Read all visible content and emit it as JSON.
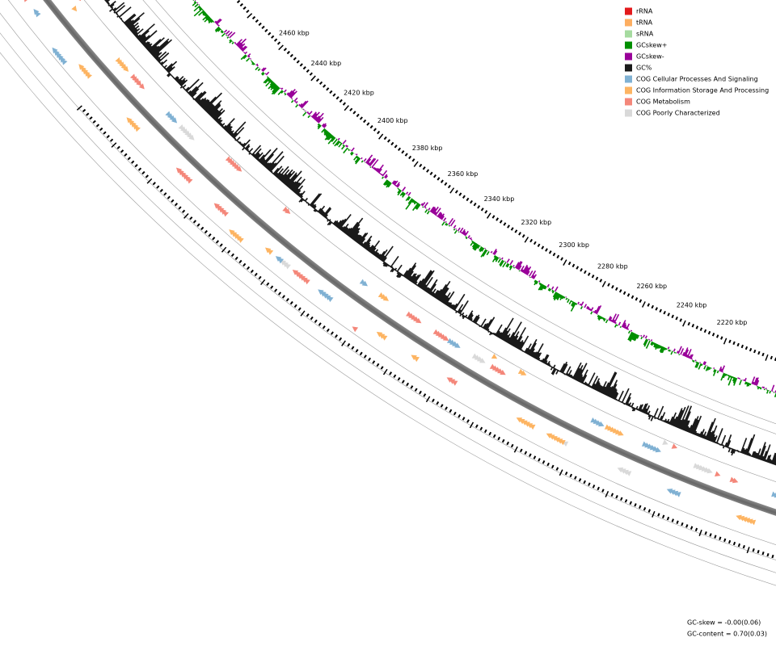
{
  "legend": [
    {
      "label": "rRNA",
      "color": "#e31a1c"
    },
    {
      "label": "tRNA",
      "color": "#fdae61"
    },
    {
      "label": "sRNA",
      "color": "#a6dba0"
    },
    {
      "label": "GCskew+",
      "color": "#008f00"
    },
    {
      "label": "GCskew-",
      "color": "#990099"
    },
    {
      "label": "GC%",
      "color": "#1a1a1a"
    },
    {
      "label": "COG Cellular Processes And Signaling",
      "color": "#80b1d3"
    },
    {
      "label": "COG Information Storage And Processing",
      "color": "#fdb462"
    },
    {
      "label": "COG Metabolism",
      "color": "#f4877a"
    },
    {
      "label": "COG Poorly Characterized",
      "color": "#d9d9d9"
    }
  ],
  "ticks": [
    "2460 kbp",
    "2440 kbp",
    "2420 kbp",
    "2400 kbp",
    "2380 kbp",
    "2360 kbp",
    "2340 kbp",
    "2320 kbp",
    "2300 kbp",
    "2280 kbp",
    "2260 kbp",
    "2240 kbp",
    "2220 kbp"
  ],
  "stats": [
    "GC-skew = -0.00(0.06)",
    "GC-content = 0.70(0.03)"
  ]
}
